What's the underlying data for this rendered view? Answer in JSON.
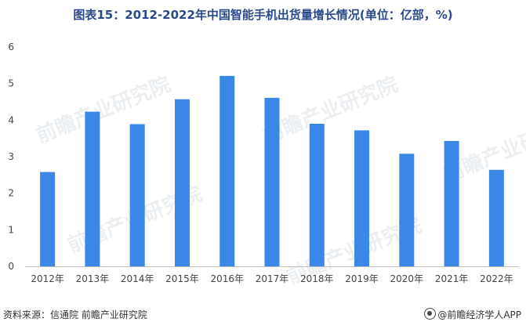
{
  "title": "图表15：2012-2022年中国智能手机出货量增长情况(单位：亿部，%)",
  "source": "资料来源：信通院 前瞻产业研究院",
  "brand": "@前瞻经济学人APP",
  "watermark": "前瞻产业研究院",
  "colors": {
    "bar": "#3a87e8",
    "axis": "#bfbfbf",
    "tick": "#444444"
  },
  "chart_data": {
    "type": "bar",
    "categories": [
      "2012年",
      "2013年",
      "2014年",
      "2015年",
      "2016年",
      "2017年",
      "2018年",
      "2019年",
      "2020年",
      "2021年",
      "2022年"
    ],
    "values": [
      2.58,
      4.23,
      3.89,
      4.57,
      5.21,
      4.61,
      3.9,
      3.72,
      3.08,
      3.43,
      2.64
    ],
    "ylim": [
      0,
      6
    ],
    "yticks": [
      0,
      1,
      2,
      3,
      4,
      5,
      6
    ],
    "grid": false,
    "legend": "none"
  }
}
